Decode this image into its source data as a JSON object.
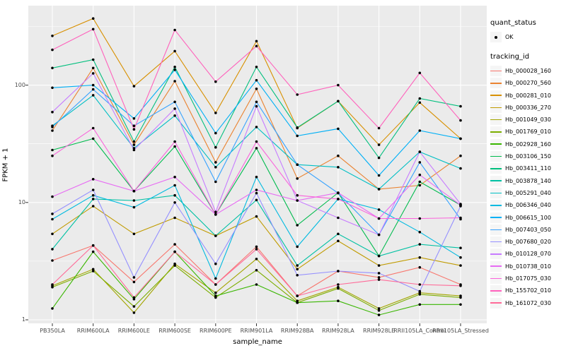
{
  "figure": {
    "bg": "#FFFFFF",
    "panel_bg": "#EBEBEB",
    "grid_color": "#FFFFFF",
    "tick_color": "#333333",
    "tick_label_color": "#4D4D4D",
    "marker_color": "#000000"
  },
  "axes": {
    "x_title": "sample_name",
    "y_title": "FPKM + 1",
    "y_tick_labels": [
      "1",
      "10",
      "100"
    ],
    "y_tick_values": [
      1,
      10,
      100
    ]
  },
  "legend": {
    "quant_title": "quant_status",
    "quant_items": [
      {
        "label": "OK",
        "marker": "black-point"
      }
    ],
    "tracking_title": "tracking_id"
  },
  "chart_data": {
    "type": "line",
    "title": "",
    "xlabel": "sample_name",
    "ylabel": "FPKM + 1",
    "y_scale": "log10",
    "ylim": [
      1,
      480
    ],
    "grid": true,
    "legend_position": "right",
    "point_markers": "black dots at every data point (quant_status = OK)",
    "categories": [
      "PB350LA",
      "RRIM600LA",
      "RRIM600LE",
      "RRIM600SE",
      "RRIM600PE",
      "RRIM901LA",
      "RRIM928BA",
      "RRIM928LA",
      "RRIM928LE",
      "RRII105LA_Control",
      "RRII105LA_Stressed"
    ],
    "series": [
      {
        "name": "Hb_000028_160",
        "color": "#F8766D",
        "values": [
          3.2,
          4.3,
          2.1,
          4.4,
          2.0,
          4.2,
          1.6,
          2.6,
          2.3,
          2.8,
          2.0
        ]
      },
      {
        "name": "Hb_000270_560",
        "color": "#EA8331",
        "values": [
          41,
          140,
          31,
          108,
          22,
          93,
          16,
          25,
          13,
          14,
          25
        ]
      },
      {
        "name": "Hb_000281_010",
        "color": "#D89000",
        "values": [
          263,
          370,
          98,
          195,
          58,
          237,
          43,
          73,
          31,
          71,
          35
        ]
      },
      {
        "name": "Hb_000336_270",
        "color": "#C09B00",
        "values": [
          5.4,
          9.3,
          5.4,
          7.4,
          5.2,
          7.6,
          2.7,
          4.7,
          2.9,
          3.4,
          2.9
        ]
      },
      {
        "name": "Hb_001049_030",
        "color": "#A3A500",
        "values": [
          1.95,
          2.7,
          1.15,
          3.0,
          1.7,
          3.3,
          1.45,
          1.9,
          1.25,
          1.7,
          1.6
        ]
      },
      {
        "name": "Hb_001769_010",
        "color": "#7CAE00",
        "values": [
          1.9,
          2.6,
          1.3,
          2.9,
          1.55,
          2.65,
          1.4,
          1.85,
          1.2,
          1.65,
          1.55
        ]
      },
      {
        "name": "Hb_002928_160",
        "color": "#39B600",
        "values": [
          1.25,
          3.8,
          1.5,
          3.8,
          1.6,
          2.0,
          1.4,
          1.45,
          1.1,
          1.35,
          1.35
        ]
      },
      {
        "name": "Hb_003106_150",
        "color": "#00BB4E",
        "values": [
          28,
          35,
          12.5,
          30,
          7.9,
          29,
          6.4,
          12.1,
          3.5,
          15,
          9.5
        ]
      },
      {
        "name": "Hb_003411_110",
        "color": "#00BF7D",
        "values": [
          140,
          165,
          33,
          143,
          29.5,
          143,
          43.5,
          73,
          24,
          77,
          66
        ]
      },
      {
        "name": "Hb_003878_140",
        "color": "#00C1A3",
        "values": [
          4.0,
          10.7,
          10.4,
          11.5,
          5.2,
          10.5,
          2.9,
          5.4,
          3.5,
          4.4,
          4.1
        ]
      },
      {
        "name": "Hb_005291_040",
        "color": "#00BFC4",
        "values": [
          45,
          82,
          29,
          55,
          20,
          44,
          21,
          20,
          13,
          27,
          19.5
        ]
      },
      {
        "name": "Hb_006346_040",
        "color": "#00BAE0",
        "values": [
          7.2,
          11.5,
          9.1,
          14,
          2.25,
          16.5,
          4.2,
          10.7,
          8.7,
          5.6,
          3.4
        ]
      },
      {
        "name": "Hb_006615_100",
        "color": "#00B0F6",
        "values": [
          95,
          100,
          52,
          135,
          39,
          110,
          37,
          42.5,
          17,
          41,
          35
        ]
      },
      {
        "name": "Hb_007403_050",
        "color": "#35A2FF",
        "values": [
          44,
          92,
          45,
          72,
          15,
          72,
          21,
          12,
          5.3,
          22,
          7.2
        ]
      },
      {
        "name": "Hb_007680_020",
        "color": "#9590FF",
        "values": [
          8.0,
          12.8,
          2.3,
          10,
          3.0,
          12,
          2.4,
          2.6,
          2.5,
          1.75,
          9.3
        ]
      },
      {
        "name": "Hb_010128_070",
        "color": "#C77CFF",
        "values": [
          59,
          126,
          28,
          63,
          8.3,
          66,
          10.4,
          7.4,
          5.3,
          27,
          9.7
        ]
      },
      {
        "name": "Hb_010738_010",
        "color": "#E76BF3",
        "values": [
          11.2,
          15.8,
          12.5,
          16.5,
          7.9,
          12.8,
          10.4,
          12.1,
          7.3,
          17.2,
          9.5
        ]
      },
      {
        "name": "Hb_017075_030",
        "color": "#FA62DB",
        "values": [
          25,
          43,
          12.5,
          33,
          7.9,
          33,
          11.5,
          10.7,
          7.3,
          7.3,
          7.4
        ]
      },
      {
        "name": "Hb_155702_010",
        "color": "#FF62BC",
        "values": [
          200,
          300,
          42,
          295,
          107,
          215,
          83,
          100,
          43,
          127,
          50
        ]
      },
      {
        "name": "Hb_161072_030",
        "color": "#FF6A98",
        "values": [
          2.0,
          4.3,
          1.55,
          3.8,
          2.0,
          4.0,
          1.6,
          2.0,
          2.2,
          2.0,
          1.95
        ]
      }
    ]
  }
}
